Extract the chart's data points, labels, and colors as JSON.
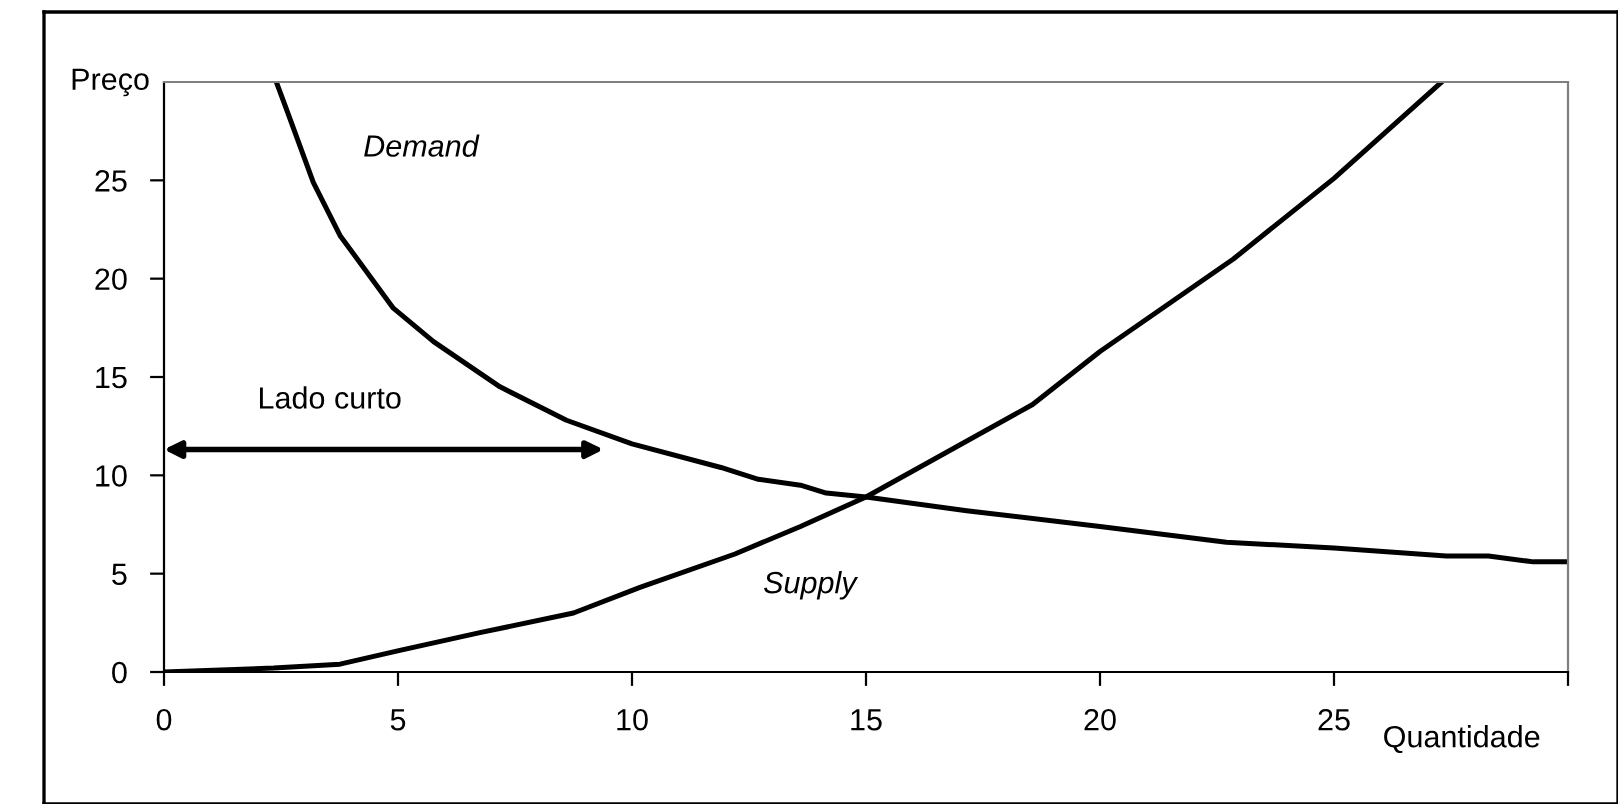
{
  "chart_data": {
    "type": "line",
    "xlabel": "Quantidade",
    "ylabel": "Preço",
    "series": [
      {
        "color": "#000000",
        "x": [
          2.4,
          2.62,
          3.19,
          3.76,
          4.9,
          5.76,
          7.18,
          8.6,
          10.0,
          11.9,
          12.7,
          13.6,
          14.15,
          15.0,
          17.15,
          20.0,
          22.7,
          25.0,
          27.4,
          28.3,
          29.26,
          30.0
        ],
        "values": [
          30.0,
          28.6,
          24.9,
          22.2,
          18.5,
          16.8,
          14.5,
          12.8,
          11.6,
          10.4,
          9.8,
          9.5,
          9.1,
          8.9,
          8.2,
          7.4,
          6.6,
          6.3,
          5.9,
          5.9,
          5.6,
          5.6
        ]
      },
      {
        "color": "#000000",
        "x": [
          0,
          2.34,
          3.76,
          5.04,
          6.75,
          8.75,
          10.17,
          12.2,
          13.6,
          15.0,
          18.56,
          20.0,
          22.85,
          25.0,
          27.3
        ],
        "values": [
          0,
          0.2,
          0.4,
          1.1,
          2.0,
          3.0,
          4.3,
          6.0,
          7.4,
          8.9,
          13.6,
          16.3,
          21.0,
          25.1,
          30.0
        ]
      }
    ],
    "annotations": [
      "Demand",
      "Supply",
      "Lado curto"
    ],
    "xlim": [
      0,
      30
    ],
    "ylim": [
      0,
      30
    ],
    "xticks": [
      0,
      5,
      10,
      15,
      20,
      25,
      {
        "value": 30,
        "label": null
      }
    ],
    "yticks": [
      0,
      5,
      10,
      15,
      20,
      25
    ],
    "grid": false,
    "legend": false,
    "marker": "none",
    "line_style": "solid"
  }
}
